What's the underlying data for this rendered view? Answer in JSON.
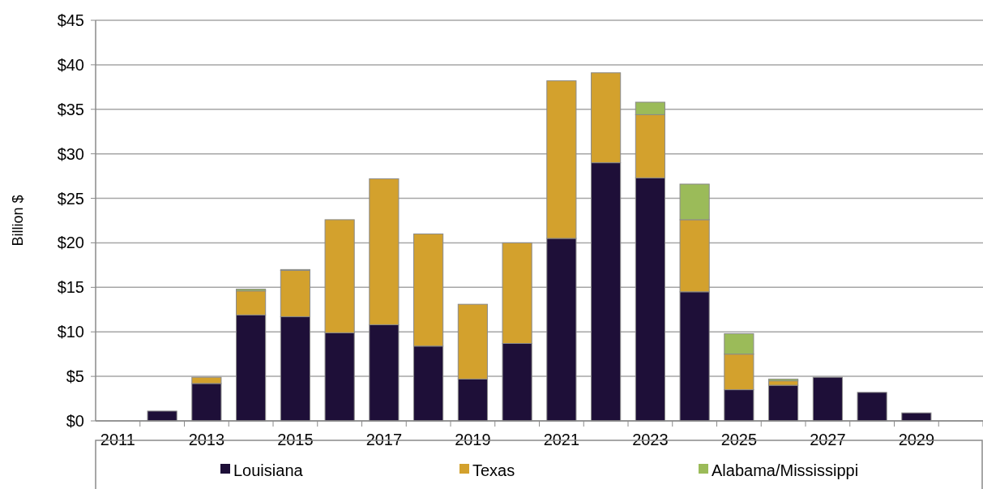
{
  "chart_data": {
    "type": "bar",
    "stacked": true,
    "ylabel": "Billion $",
    "categories": [
      "2011",
      null,
      "2013",
      null,
      "2015",
      null,
      "2017",
      null,
      "2019",
      null,
      "2021",
      null,
      "2023",
      null,
      "2025",
      null,
      "2027",
      null,
      "2029",
      null
    ],
    "series": [
      {
        "name": "Louisiana",
        "color": "#1e0f38",
        "values": [
          null,
          1.1,
          4.2,
          11.9,
          11.7,
          9.9,
          10.8,
          8.4,
          4.7,
          8.7,
          20.5,
          29,
          27.3,
          14.5,
          3.5,
          4,
          4.9,
          3.2,
          0.9,
          null
        ]
      },
      {
        "name": "Texas",
        "color": "#d3a12d",
        "values": [
          0,
          0,
          0.7,
          2.7,
          5.2,
          12.7,
          16.4,
          12.6,
          8.4,
          11.3,
          17.7,
          10.1,
          7.1,
          8.1,
          4,
          0.5,
          0,
          0,
          0,
          0
        ]
      },
      {
        "name": "Alabama/Mississippi",
        "color": "#9bbb59",
        "values": [
          0,
          0,
          0,
          0.2,
          0.1,
          0,
          0,
          0,
          0,
          0,
          0,
          0,
          1.4,
          4,
          2.3,
          0.2,
          0,
          0,
          0,
          0
        ]
      }
    ],
    "ylim": [
      0,
      45
    ],
    "yticks": [
      {
        "value": 0,
        "label": "$0"
      },
      {
        "value": 5,
        "label": "$5"
      },
      {
        "value": 10,
        "label": "$10"
      },
      {
        "value": 15,
        "label": "$15"
      },
      {
        "value": 20,
        "label": "$20"
      },
      {
        "value": 25,
        "label": "$25"
      },
      {
        "value": 30,
        "label": "$30"
      },
      {
        "value": 35,
        "label": "$35"
      },
      {
        "value": 40,
        "label": "$40"
      },
      {
        "value": 45,
        "label": "$45"
      }
    ],
    "grid": "y",
    "legend": "bottom"
  }
}
